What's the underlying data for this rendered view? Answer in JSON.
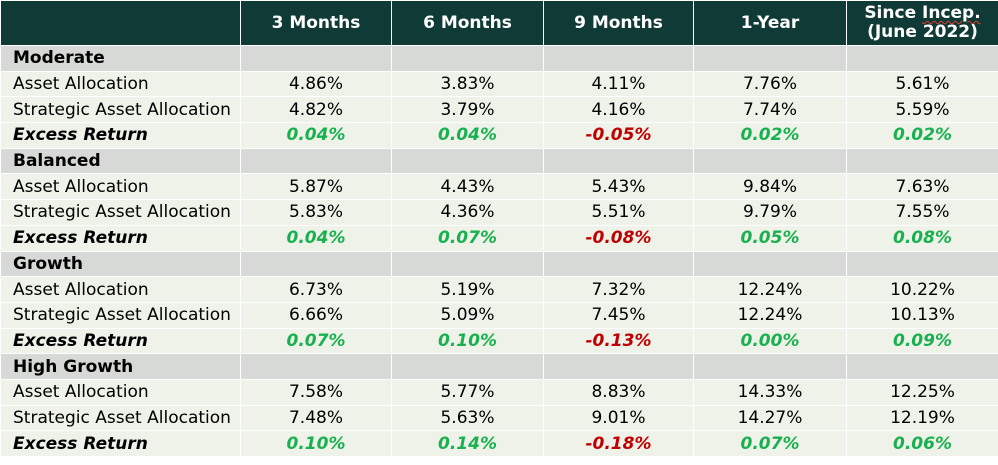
{
  "header": {
    "col1": "3 Months",
    "col2": "6 Months",
    "col3": "9 Months",
    "col4": "1-Year",
    "col5_line1_a": "Since ",
    "col5_line1_b": "Incep.",
    "col5_line2": "(June 2022)"
  },
  "colors": {
    "header_bg": "#0f3a35",
    "group_bg": "#d6d9d5",
    "row_bg": "#eef2e8",
    "positive": "#19b14f",
    "negative": "#c00000"
  },
  "groups": [
    {
      "name": "Moderate",
      "rows": [
        {
          "label": "Asset Allocation",
          "values": [
            "4.86%",
            "3.83%",
            "4.11%",
            "7.76%",
            "5.61%"
          ]
        },
        {
          "label": "Strategic Asset Allocation",
          "values": [
            "4.82%",
            "3.79%",
            "4.16%",
            "7.74%",
            "5.59%"
          ]
        },
        {
          "label": "Excess Return",
          "values": [
            "0.04%",
            "0.04%",
            "-0.05%",
            "0.02%",
            "0.02%"
          ]
        }
      ]
    },
    {
      "name": "Balanced",
      "rows": [
        {
          "label": "Asset Allocation",
          "values": [
            "5.87%",
            "4.43%",
            "5.43%",
            "9.84%",
            "7.63%"
          ]
        },
        {
          "label": "Strategic Asset Allocation",
          "values": [
            "5.83%",
            "4.36%",
            "5.51%",
            "9.79%",
            "7.55%"
          ]
        },
        {
          "label": "Excess Return",
          "values": [
            "0.04%",
            "0.07%",
            "-0.08%",
            "0.05%",
            "0.08%"
          ]
        }
      ]
    },
    {
      "name": "Growth",
      "rows": [
        {
          "label": "Asset Allocation",
          "values": [
            "6.73%",
            "5.19%",
            "7.32%",
            "12.24%",
            "10.22%"
          ]
        },
        {
          "label": "Strategic Asset Allocation",
          "values": [
            "6.66%",
            "5.09%",
            "7.45%",
            "12.24%",
            "10.13%"
          ]
        },
        {
          "label": "Excess Return",
          "values": [
            "0.07%",
            "0.10%",
            "-0.13%",
            "0.00%",
            "0.09%"
          ]
        }
      ]
    },
    {
      "name": "High Growth",
      "rows": [
        {
          "label": "Asset Allocation",
          "values": [
            "7.58%",
            "5.77%",
            "8.83%",
            "14.33%",
            "12.25%"
          ]
        },
        {
          "label": "Strategic Asset Allocation",
          "values": [
            "7.48%",
            "5.63%",
            "9.01%",
            "14.27%",
            "12.19%"
          ]
        },
        {
          "label": "Excess Return",
          "values": [
            "0.10%",
            "0.14%",
            "-0.18%",
            "0.07%",
            "0.06%"
          ]
        }
      ]
    }
  ]
}
